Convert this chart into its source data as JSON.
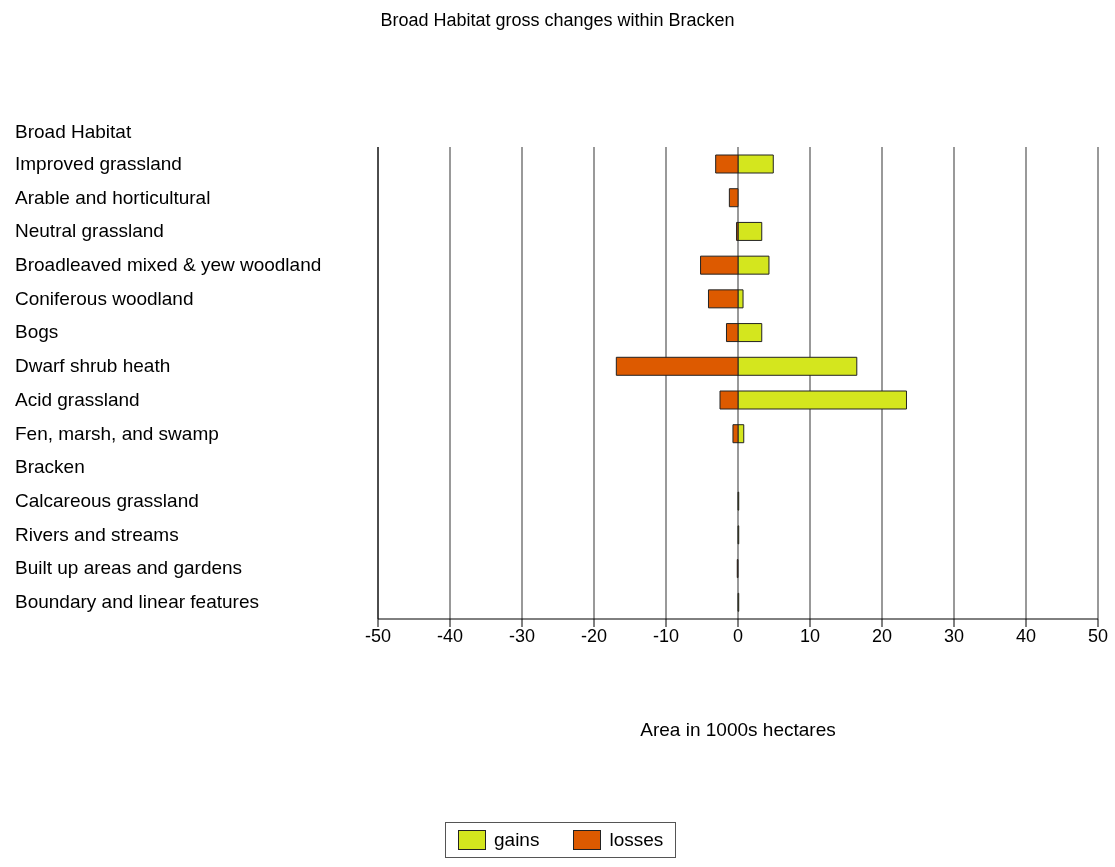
{
  "chart_data": {
    "type": "bar",
    "orientation": "horizontal",
    "stacked": true,
    "title": "Broad Habitat gross changes within Bracken",
    "ylabel": "Broad Habitat",
    "xlabel": "Area in 1000s hectares",
    "categories": [
      "Improved grassland",
      "Arable and horticultural",
      "Neutral grassland",
      "Broadleaved mixed & yew woodland",
      "Coniferous woodland",
      "Bogs",
      "Dwarf shrub heath",
      "Acid grassland",
      "Fen, marsh, and swamp",
      "Bracken",
      "Calcareous grassland",
      "Rivers and streams",
      "Built up areas and gardens",
      "Boundary and linear features"
    ],
    "series": [
      {
        "name": "gains",
        "color": "#d4e61e",
        "values": [
          4.9,
          null,
          3.3,
          4.3,
          0.7,
          3.3,
          16.5,
          23.4,
          0.8,
          null,
          0.1,
          0.1,
          null,
          0.1
        ]
      },
      {
        "name": "losses",
        "color": "#dd5a00",
        "values": [
          -3.1,
          -1.2,
          -0.2,
          -5.2,
          -4.1,
          -1.6,
          -16.9,
          -2.5,
          -0.7,
          null,
          null,
          null,
          -0.1,
          null
        ]
      }
    ],
    "xlim": [
      -50,
      50
    ],
    "xticks": [
      -50,
      -40,
      -30,
      -20,
      -10,
      0,
      10,
      20,
      30,
      40,
      50
    ],
    "grid": "x",
    "legend": "bottom"
  }
}
